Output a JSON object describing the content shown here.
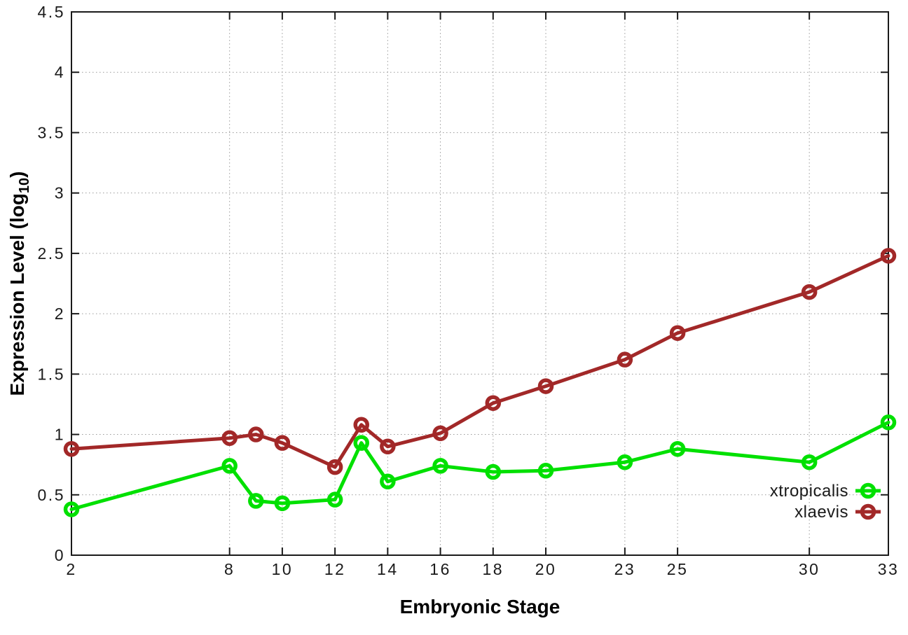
{
  "chart_data": {
    "type": "line",
    "title": "",
    "xlabel": "Embryonic Stage",
    "ylabel": "Expression Level (log10)",
    "ylabel_parts": {
      "prefix": "Expression Level (log",
      "sub": "10",
      "suffix": ")"
    },
    "x": [
      2,
      8,
      9,
      10,
      12,
      13,
      14,
      16,
      18,
      20,
      23,
      25,
      30,
      33
    ],
    "x_tick_labels": [
      "2",
      "8",
      "10",
      "12",
      "14",
      "16",
      "18",
      "20",
      "23",
      "25",
      "30",
      "33"
    ],
    "y_tick_labels": [
      "0",
      "0.5",
      "1",
      "1.5",
      "2",
      "2.5",
      "3",
      "3.5",
      "4",
      "4.5"
    ],
    "xlim": [
      2,
      33
    ],
    "ylim": [
      0,
      4.5
    ],
    "grid": "dotted",
    "legend_position": "inside-bottom-right",
    "series": [
      {
        "name": "xtropicalis",
        "color": "#00e000",
        "marker": "open-circle",
        "values": [
          0.38,
          0.74,
          0.45,
          0.43,
          0.46,
          0.93,
          0.61,
          0.74,
          0.69,
          0.7,
          0.77,
          0.88,
          0.77,
          1.1
        ]
      },
      {
        "name": "xlaevis",
        "color": "#a22828",
        "marker": "open-circle",
        "values": [
          0.88,
          0.97,
          1.0,
          0.93,
          0.73,
          1.08,
          0.9,
          1.01,
          1.26,
          1.4,
          1.62,
          1.84,
          2.18,
          2.48
        ]
      }
    ],
    "axis_color": "#1a1a1a",
    "grid_color": "#9a9a9a",
    "background": "#ffffff"
  }
}
